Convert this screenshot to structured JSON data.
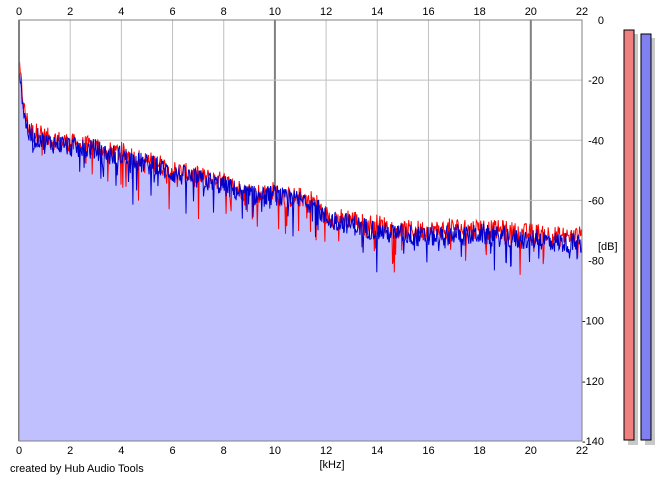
{
  "credit": "created by Hub Audio Tools",
  "colors": {
    "background": "#ffffff",
    "fill": "#c0c0ff",
    "grid": "#c0c0c0",
    "grid_major": "#808080",
    "left_channel": "#ff0000",
    "right_channel": "#0000cc",
    "meter_left": "#f08080",
    "meter_right": "#8080f0"
  },
  "meters": {
    "left_level_db": -0.5,
    "right_level_db": -1.0
  },
  "chart_data": {
    "type": "line",
    "title": "",
    "xlabel": "[kHz]",
    "ylabel": "[dB]",
    "xlim": [
      0,
      22
    ],
    "ylim": [
      -140,
      0
    ],
    "x_ticks": [
      0,
      2,
      4,
      6,
      8,
      10,
      12,
      14,
      16,
      18,
      20,
      22
    ],
    "x_tick_labels": [
      "0",
      "2",
      "4",
      "6",
      "8",
      "10",
      "12",
      "14",
      "16",
      "18",
      "20",
      "22"
    ],
    "y_ticks": [
      0,
      -20,
      -40,
      -60,
      -80,
      -100,
      -120,
      -140
    ],
    "y_tick_labels": [
      "0",
      "-20",
      "-40",
      "-60",
      "-80",
      "-100",
      "-120",
      "-140"
    ],
    "grid": true,
    "series": [
      {
        "color": "#ff0000",
        "x": [
          0,
          0.1,
          0.2,
          0.4,
          0.6,
          0.8,
          1,
          1.5,
          2,
          2.5,
          3,
          3.5,
          4,
          4.5,
          5,
          5.5,
          6,
          6.5,
          7,
          7.5,
          8,
          8.5,
          9,
          9.5,
          10,
          10.5,
          11,
          11.5,
          12,
          12.5,
          13,
          13.5,
          14,
          14.5,
          15,
          15.5,
          16,
          16.5,
          17,
          17.5,
          18,
          18.5,
          19,
          19.5,
          20,
          20.5,
          21,
          21.5,
          22
        ],
        "y": [
          -16,
          -22,
          -30,
          -36,
          -38,
          -37,
          -39,
          -40,
          -41,
          -42,
          -42,
          -44,
          -44,
          -46,
          -47,
          -48,
          -50,
          -51,
          -52,
          -53,
          -54,
          -56,
          -57,
          -58,
          -57,
          -59,
          -59,
          -60,
          -65,
          -66,
          -66,
          -68,
          -68,
          -69,
          -70,
          -70,
          -70,
          -70,
          -69,
          -70,
          -69,
          -70,
          -70,
          -71,
          -71,
          -71,
          -72,
          -72,
          -72
        ]
      },
      {
        "color": "#0000cc",
        "x": [
          0,
          0.1,
          0.2,
          0.4,
          0.6,
          0.8,
          1,
          1.5,
          2,
          2.5,
          3,
          3.5,
          4,
          4.5,
          5,
          5.5,
          6,
          6.5,
          7,
          7.5,
          8,
          8.5,
          9,
          9.5,
          10,
          10.5,
          11,
          11.5,
          12,
          12.5,
          13,
          13.5,
          14,
          14.5,
          15,
          15.5,
          16,
          16.5,
          17,
          17.5,
          18,
          18.5,
          19,
          19.5,
          20,
          20.5,
          21,
          21.5,
          22
        ],
        "y": [
          -15,
          -23,
          -32,
          -38,
          -40,
          -39,
          -41,
          -41,
          -42,
          -43,
          -43,
          -45,
          -45,
          -47,
          -48,
          -49,
          -51,
          -52,
          -53,
          -54,
          -55,
          -57,
          -58,
          -59,
          -58,
          -60,
          -60,
          -61,
          -66,
          -67,
          -68,
          -69,
          -70,
          -71,
          -71,
          -72,
          -72,
          -72,
          -71,
          -72,
          -71,
          -72,
          -72,
          -73,
          -73,
          -73,
          -74,
          -74,
          -75
        ]
      }
    ],
    "fill_series_index": 1
  }
}
